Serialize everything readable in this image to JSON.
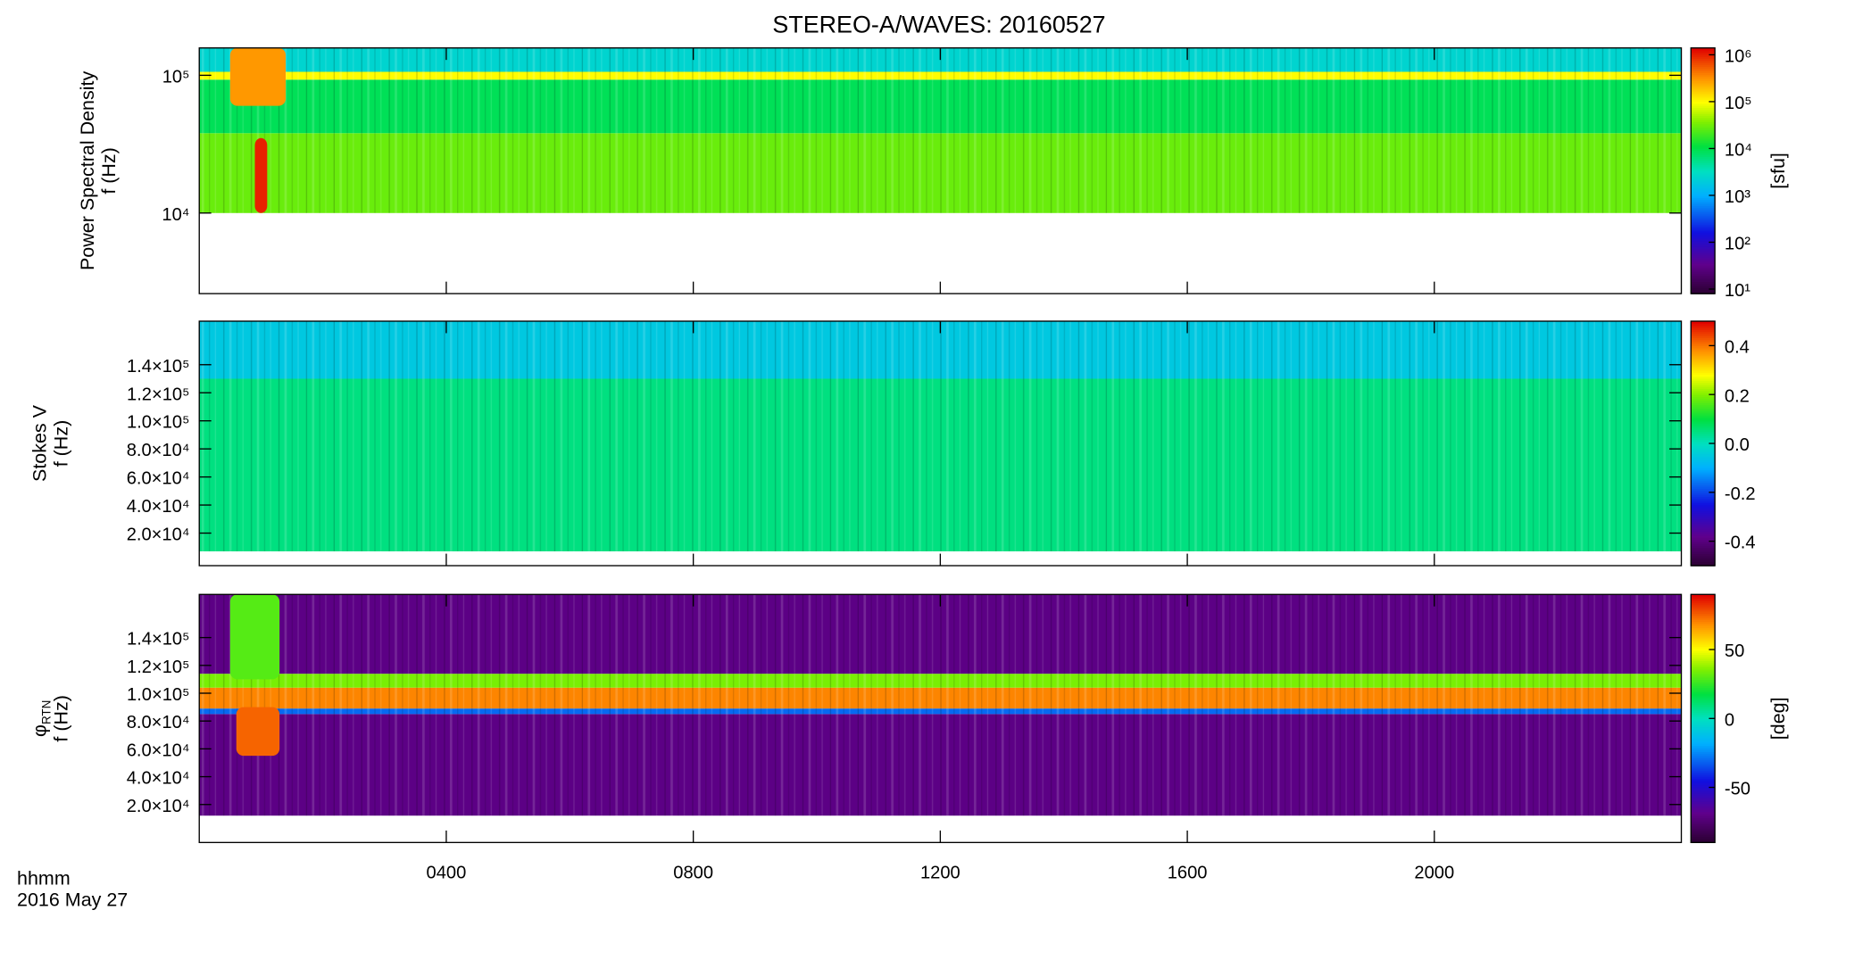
{
  "chart_data": [
    {
      "type": "spectrogram",
      "title": "STEREO-A/WAVES: 20160527",
      "ylabel": [
        "Power Spectral Density"
      ],
      "flabel": "f (Hz)",
      "xlim": [
        0,
        24
      ],
      "ylog": true,
      "ylim": [
        2600,
        158000
      ],
      "yticks": [
        {
          "value": 10000,
          "label": "10⁴"
        },
        {
          "value": 100000,
          "label": "10⁵"
        }
      ],
      "bands": [
        {
          "from": 10000,
          "to": 38000,
          "value": 30000
        },
        {
          "from": 38000,
          "to": 93000,
          "value": 9000
        },
        {
          "from": 93000,
          "to": 106000,
          "value": 100000
        },
        {
          "from": 106000,
          "to": 158000,
          "value": 2500
        }
      ],
      "patches": [
        {
          "x": [
            0.5,
            1.4
          ],
          "y": [
            60000,
            158000
          ],
          "value": 300000
        },
        {
          "x": [
            0.9,
            1.1
          ],
          "y": [
            10000,
            35000
          ],
          "value": 1000000
        }
      ],
      "colorbar": {
        "label": "[sfu]",
        "log": true,
        "lim": [
          8,
          1400000
        ],
        "ticks": [
          {
            "value": 10,
            "label": "10¹"
          },
          {
            "value": 100,
            "label": "10²"
          },
          {
            "value": 1000,
            "label": "10³"
          },
          {
            "value": 10000,
            "label": "10⁴"
          },
          {
            "value": 100000,
            "label": "10⁵"
          },
          {
            "value": 1000000,
            "label": "10⁶"
          }
        ]
      }
    },
    {
      "type": "spectrogram",
      "ylabel": [
        "Stokes V"
      ],
      "flabel": "f (Hz)",
      "xlim": [
        0,
        24
      ],
      "ylog": false,
      "ylim": [
        -3200,
        171000
      ],
      "yticks": [
        {
          "value": 20000,
          "label": "2.0×10⁴"
        },
        {
          "value": 40000,
          "label": "4.0×10⁴"
        },
        {
          "value": 60000,
          "label": "6.0×10⁴"
        },
        {
          "value": 80000,
          "label": "8.0×10⁴"
        },
        {
          "value": 100000,
          "label": "1.0×10⁵"
        },
        {
          "value": 120000,
          "label": "1.2×10⁵"
        },
        {
          "value": 140000,
          "label": "1.4×10⁵"
        }
      ],
      "bands": [
        {
          "from": 7000,
          "to": 130000,
          "value": 0.05
        },
        {
          "from": 130000,
          "to": 171000,
          "value": -0.05
        }
      ],
      "patches": [],
      "colorbar": {
        "log": false,
        "lim": [
          -0.5,
          0.5
        ],
        "ticks": [
          -0.4,
          -0.2,
          {
            "value": 0,
            "label": "0.0"
          },
          0.2,
          0.4
        ]
      }
    },
    {
      "type": "spectrogram",
      "ylabel": [
        "φ",
        "RTN"
      ],
      "flabel": "f (Hz)",
      "xlim": [
        0,
        24
      ],
      "ylog": false,
      "ylim": [
        -7300,
        171000
      ],
      "xticks": [
        {
          "value": 4,
          "label": "0400"
        },
        {
          "value": 8,
          "label": "0800"
        },
        {
          "value": 12,
          "label": "1200"
        },
        {
          "value": 16,
          "label": "1600"
        },
        {
          "value": 20,
          "label": "2000"
        }
      ],
      "xlabel": "hhmm",
      "date": "2016 May 27",
      "yticks": [
        {
          "value": 20000,
          "label": "2.0×10⁴"
        },
        {
          "value": 40000,
          "label": "4.0×10⁴"
        },
        {
          "value": 60000,
          "label": "6.0×10⁴"
        },
        {
          "value": 80000,
          "label": "8.0×10⁴"
        },
        {
          "value": 100000,
          "label": "1.0×10⁵"
        },
        {
          "value": 120000,
          "label": "1.2×10⁵"
        },
        {
          "value": 140000,
          "label": "1.4×10⁵"
        }
      ],
      "bands": [
        {
          "from": 12000,
          "to": 85000,
          "value": -70
        },
        {
          "from": 85000,
          "to": 89000,
          "value": -30
        },
        {
          "from": 89000,
          "to": 104000,
          "value": 70
        },
        {
          "from": 104000,
          "to": 114000,
          "value": 35
        },
        {
          "from": 114000,
          "to": 171000,
          "value": -70
        }
      ],
      "patches": [
        {
          "x": [
            0.5,
            1.3
          ],
          "y": [
            110000,
            171000
          ],
          "value": 30
        },
        {
          "x": [
            0.6,
            1.3
          ],
          "y": [
            55000,
            90000
          ],
          "value": 75
        }
      ],
      "colorbar": {
        "label": "[deg]",
        "log": false,
        "lim": [
          -90,
          90
        ],
        "ticks": [
          -50,
          0,
          50
        ]
      }
    }
  ]
}
